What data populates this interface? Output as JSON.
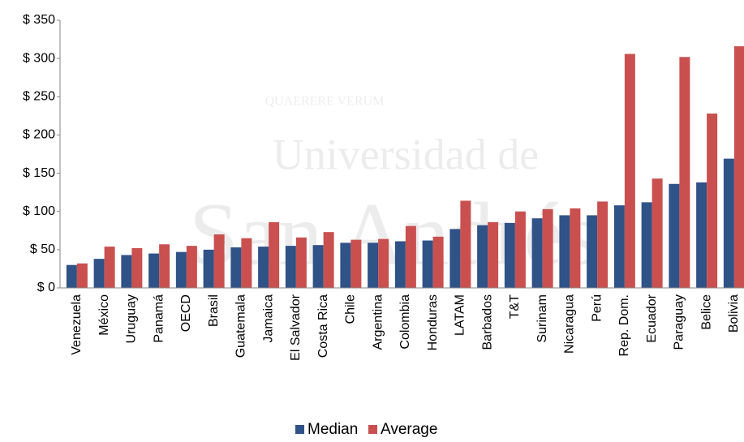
{
  "chart_data": {
    "type": "bar",
    "watermark": [
      "QUAERERE VERUM",
      "Universidad de",
      "San Andrés"
    ],
    "categories": [
      "Venezuela",
      "México",
      "Uruguay",
      "Panamá",
      "OECD",
      "Brasil",
      "Guatemala",
      "Jamaica",
      "El Salvador",
      "Costa Rica",
      "Chile",
      "Argentina",
      "Colombia",
      "Honduras",
      "LATAM",
      "Barbados",
      "T&T",
      "Surinam",
      "Nicaragua",
      "Perú",
      "Rep. Dom.",
      "Ecuador",
      "Paraguay",
      "Belice",
      "Bolivia"
    ],
    "series": [
      {
        "name": "Median",
        "color": "#2f5287",
        "values": [
          30,
          38,
          43,
          45,
          47,
          50,
          53,
          54,
          55,
          56,
          59,
          59,
          61,
          62,
          77,
          82,
          85,
          91,
          95,
          95,
          108,
          112,
          136,
          138,
          169
        ]
      },
      {
        "name": "Average",
        "color": "#c9504f",
        "values": [
          32,
          54,
          52,
          57,
          55,
          70,
          65,
          86,
          66,
          73,
          63,
          64,
          81,
          67,
          114,
          86,
          100,
          103,
          104,
          113,
          306,
          143,
          302,
          228,
          316
        ]
      }
    ],
    "ylim": [
      0,
      350
    ],
    "yticks": [
      {
        "value": 0,
        "label": "$ 0"
      },
      {
        "value": 50,
        "label": "$ 50"
      },
      {
        "value": 100,
        "label": "$ 100"
      },
      {
        "value": 150,
        "label": "$ 150"
      },
      {
        "value": 200,
        "label": "$ 200"
      },
      {
        "value": 250,
        "label": "$ 250"
      },
      {
        "value": 300,
        "label": "$ 300"
      },
      {
        "value": 350,
        "label": "$ 350"
      }
    ],
    "grid": false,
    "legend": "bottom"
  }
}
